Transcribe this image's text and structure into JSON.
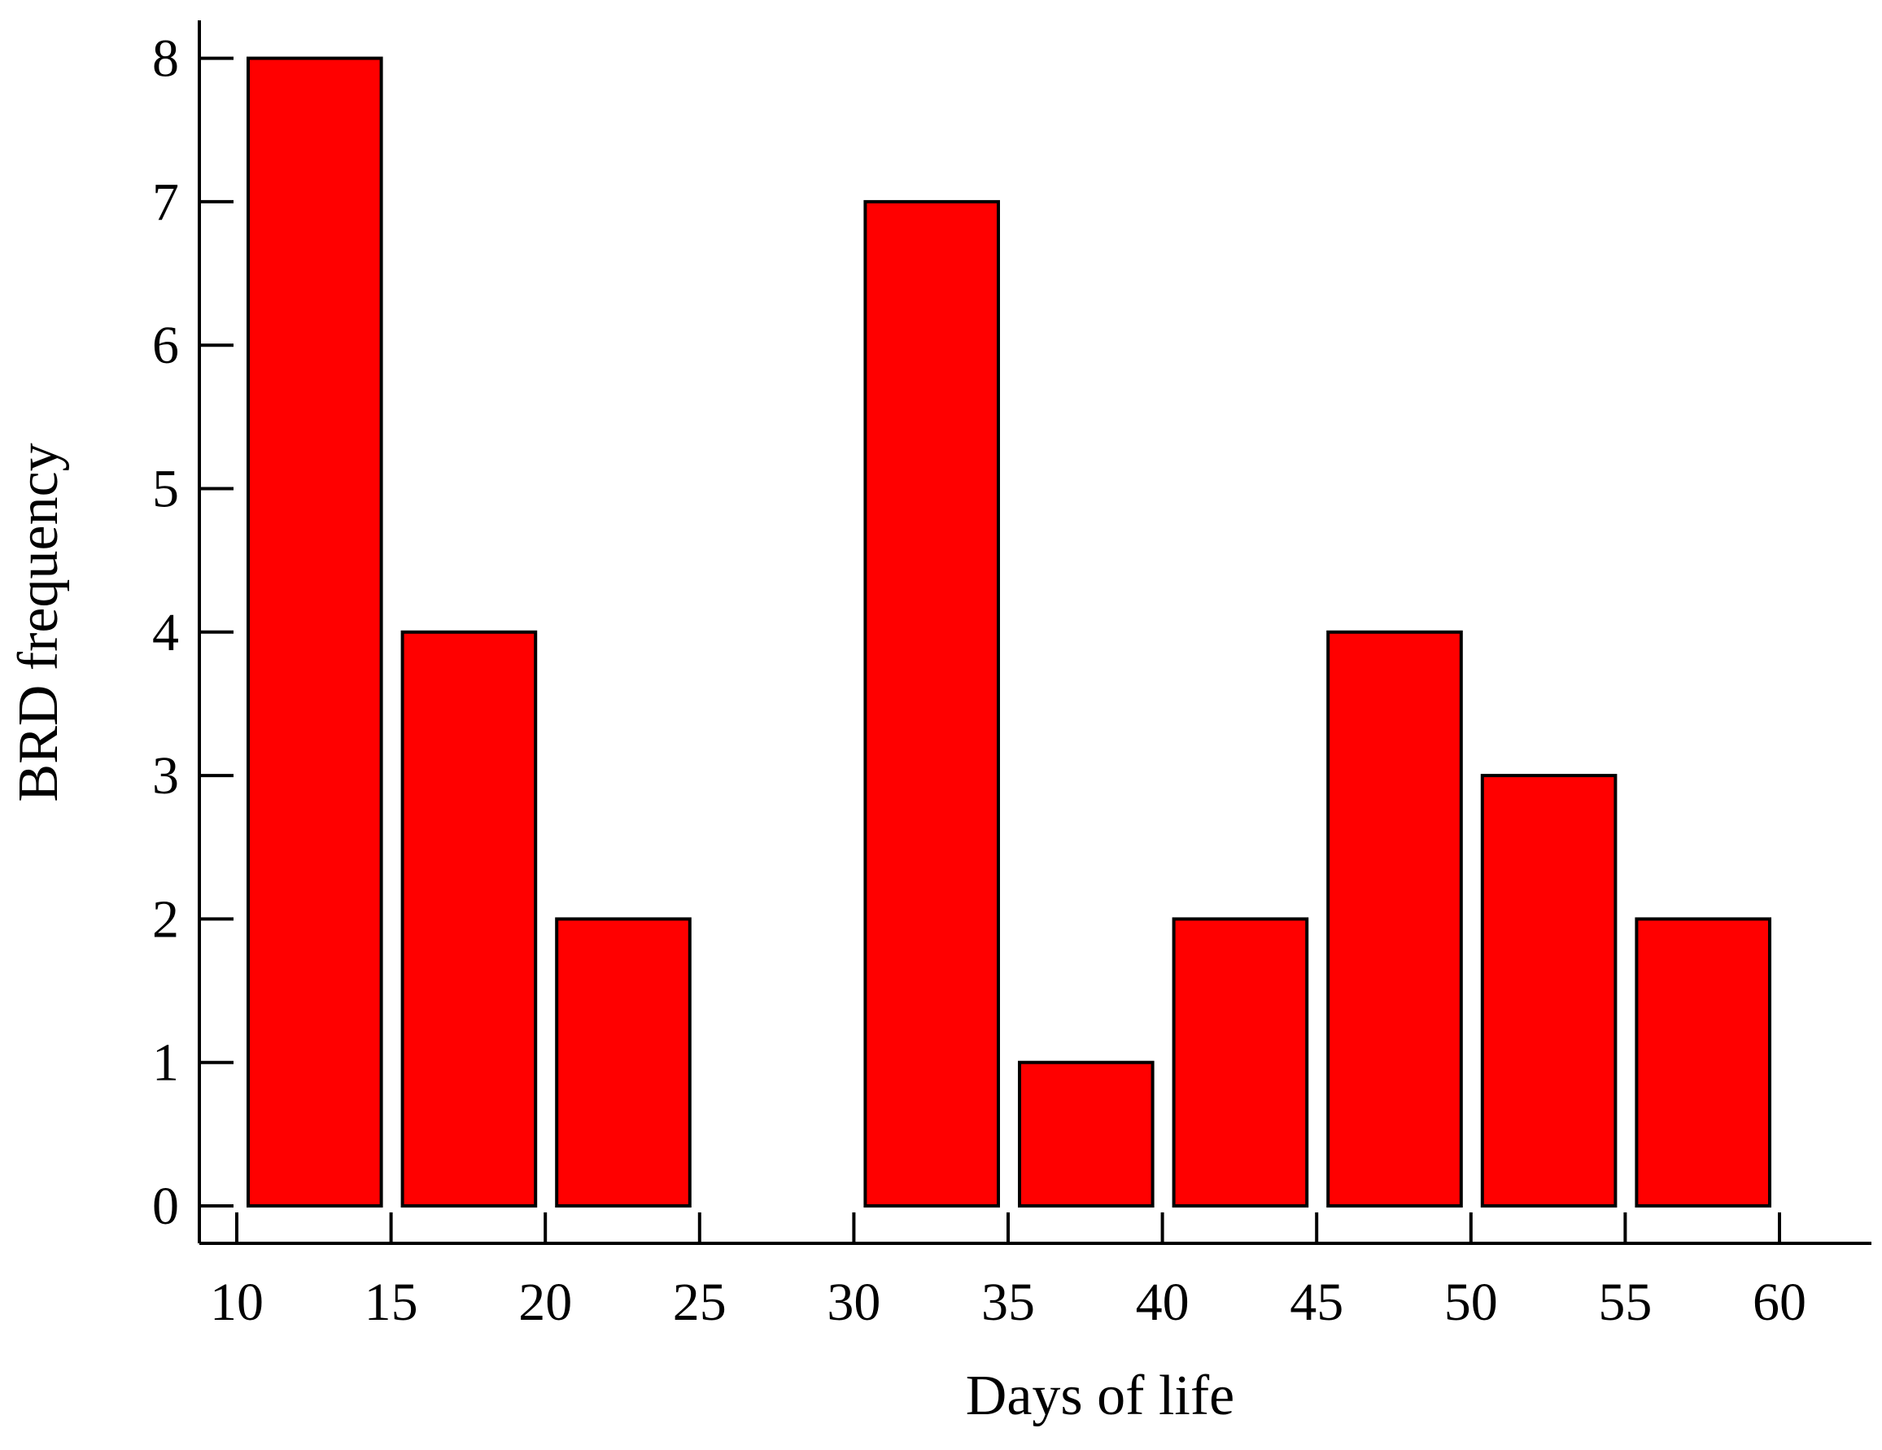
{
  "chart_data": {
    "type": "bar",
    "xlabel": "Days of life",
    "ylabel": "BRD frequency",
    "bar_color": "#ff0000",
    "edge_color": "#000000",
    "xlim": [
      10,
      60
    ],
    "ylim": [
      0,
      8
    ],
    "x_ticks": [
      "10",
      "15",
      "20",
      "25",
      "30",
      "35",
      "40",
      "45",
      "50",
      "55",
      "60"
    ],
    "y_ticks": [
      "0",
      "1",
      "2",
      "3",
      "4",
      "5",
      "6",
      "7",
      "8"
    ],
    "grid": false,
    "bins": [
      {
        "start": 10,
        "end": 15,
        "value": 8
      },
      {
        "start": 15,
        "end": 20,
        "value": 4
      },
      {
        "start": 20,
        "end": 25,
        "value": 2
      },
      {
        "start": 25,
        "end": 30,
        "value": 0
      },
      {
        "start": 30,
        "end": 35,
        "value": 7
      },
      {
        "start": 35,
        "end": 40,
        "value": 1
      },
      {
        "start": 40,
        "end": 45,
        "value": 2
      },
      {
        "start": 45,
        "end": 50,
        "value": 4
      },
      {
        "start": 50,
        "end": 55,
        "value": 3
      },
      {
        "start": 55,
        "end": 60,
        "value": 2
      }
    ]
  }
}
